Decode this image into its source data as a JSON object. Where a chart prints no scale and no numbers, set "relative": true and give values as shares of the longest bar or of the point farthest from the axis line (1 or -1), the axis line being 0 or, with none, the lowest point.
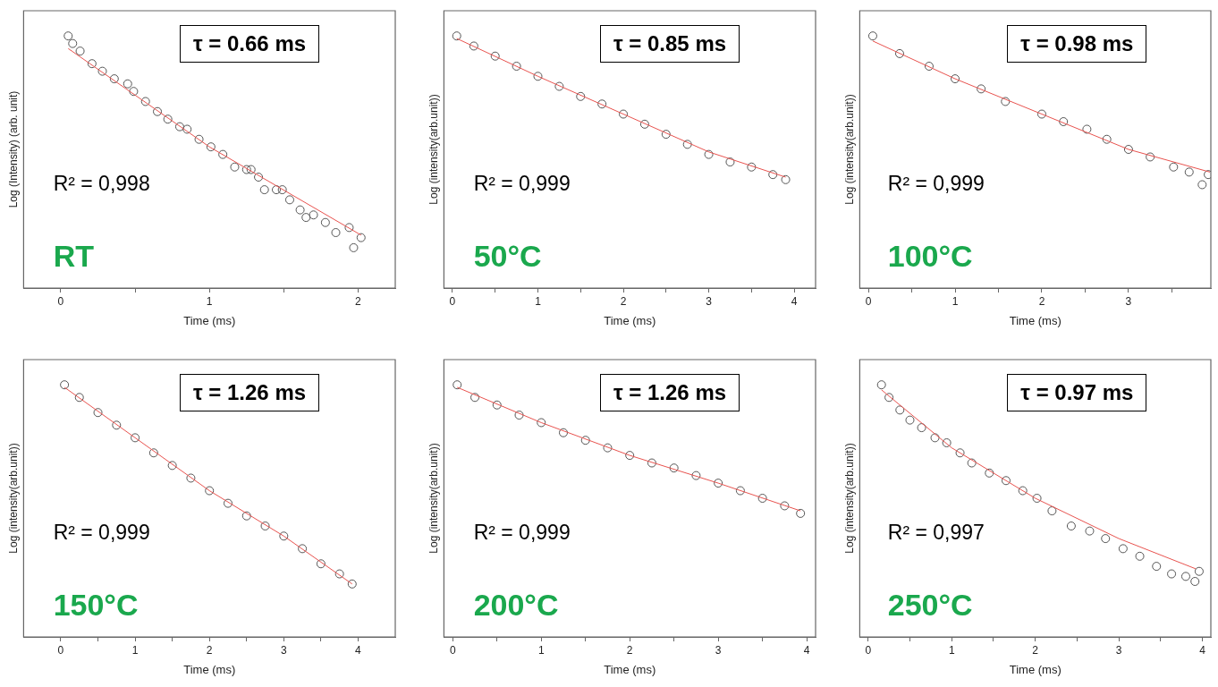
{
  "chart_data": [
    {
      "type": "scatter",
      "relative": true,
      "xlabel": "Time (ms)",
      "ylabel": "Log (Intensity) (arb. unit)",
      "xlim": [
        -0.25,
        2.25
      ],
      "xticks": [
        0,
        {
          "value": 0.5,
          "label": null
        },
        1,
        {
          "value": 1.5,
          "label": null
        },
        2
      ],
      "marker": "circle",
      "legend": false,
      "annotations": [
        "τ = 0.66 ms",
        "R² = 0,998",
        "RT"
      ],
      "series": [
        {
          "color": "#555555",
          "x": [
            0.05,
            0.08,
            0.13,
            0.21,
            0.28,
            0.36,
            0.45,
            0.49,
            0.57,
            0.65,
            0.72,
            0.8,
            0.85,
            0.93,
            1.01,
            1.09,
            1.17,
            1.25,
            1.28,
            1.33,
            1.37,
            1.45,
            1.49,
            1.54,
            1.61,
            1.65,
            1.7,
            1.78,
            1.85,
            1.94,
            1.97,
            2.02
          ],
          "values": [
            1.0,
            0.97,
            0.94,
            0.89,
            0.86,
            0.83,
            0.81,
            0.78,
            0.74,
            0.7,
            0.67,
            0.64,
            0.63,
            0.59,
            0.56,
            0.53,
            0.48,
            0.47,
            0.47,
            0.44,
            0.39,
            0.39,
            0.39,
            0.35,
            0.31,
            0.28,
            0.29,
            0.26,
            0.22,
            0.24,
            0.16,
            0.2
          ]
        },
        {
          "type": "line",
          "marker": "none",
          "color": "#e8534f",
          "x": [
            0.05,
            1.0,
            2.02
          ],
          "values": [
            0.95,
            0.56,
            0.21
          ]
        }
      ]
    },
    {
      "type": "scatter",
      "relative": true,
      "xlabel": "Time (ms)",
      "ylabel": "Log (intensity(arb.unit))",
      "xlim": [
        -0.1,
        4.25
      ],
      "xticks": [
        0,
        {
          "value": 0.5,
          "label": null
        },
        1,
        {
          "value": 1.5,
          "label": null
        },
        2,
        {
          "value": 2.5,
          "label": null
        },
        3,
        {
          "value": 3.5,
          "label": null
        },
        4
      ],
      "marker": "circle",
      "legend": false,
      "annotations": [
        "τ = 0.85 ms",
        "R² = 0,999",
        "50°C"
      ],
      "series": [
        {
          "color": "#555555",
          "x": [
            0.05,
            0.25,
            0.5,
            0.75,
            1.0,
            1.25,
            1.5,
            1.75,
            2.0,
            2.25,
            2.5,
            2.75,
            3.0,
            3.25,
            3.5,
            3.75,
            3.9
          ],
          "values": [
            1.0,
            0.96,
            0.92,
            0.88,
            0.84,
            0.8,
            0.76,
            0.73,
            0.69,
            0.65,
            0.61,
            0.57,
            0.53,
            0.5,
            0.48,
            0.45,
            0.43
          ]
        },
        {
          "type": "line",
          "marker": "none",
          "color": "#e8534f",
          "x": [
            0.05,
            1.0,
            2.0,
            3.0,
            3.9
          ],
          "values": [
            0.99,
            0.84,
            0.69,
            0.54,
            0.44
          ]
        }
      ]
    },
    {
      "type": "scatter",
      "relative": true,
      "xlabel": "Time (ms)",
      "ylabel": "Log (intensity(arb.unit))",
      "xlim": [
        -0.1,
        3.95
      ],
      "xticks": [
        0,
        {
          "value": 0.5,
          "label": null
        },
        1,
        {
          "value": 1.5,
          "label": null
        },
        2,
        {
          "value": 2.5,
          "label": null
        },
        3,
        {
          "value": 3.5,
          "label": null
        }
      ],
      "marker": "circle",
      "legend": false,
      "annotations": [
        "τ = 0.98 ms",
        "R² = 0,999",
        "100°C"
      ],
      "series": [
        {
          "color": "#555555",
          "x": [
            0.05,
            0.36,
            0.7,
            1.0,
            1.3,
            1.58,
            2.0,
            2.25,
            2.52,
            2.75,
            3.0,
            3.25,
            3.52,
            3.7,
            3.85,
            3.92
          ],
          "values": [
            1.0,
            0.93,
            0.88,
            0.83,
            0.79,
            0.74,
            0.69,
            0.66,
            0.63,
            0.59,
            0.55,
            0.52,
            0.48,
            0.46,
            0.41,
            0.45
          ]
        },
        {
          "type": "line",
          "marker": "none",
          "color": "#e8534f",
          "x": [
            0.05,
            1.0,
            2.0,
            3.0,
            3.94
          ],
          "values": [
            0.98,
            0.83,
            0.69,
            0.55,
            0.46
          ]
        }
      ]
    },
    {
      "type": "scatter",
      "relative": true,
      "xlabel": "Time (ms)",
      "ylabel": "Log (intensity(arb.unit))",
      "xlim": [
        -0.5,
        4.5
      ],
      "xticks": [
        0,
        {
          "value": 0.5,
          "label": null
        },
        1,
        {
          "value": 1.5,
          "label": null
        },
        2,
        {
          "value": 2.5,
          "label": null
        },
        3,
        {
          "value": 3.5,
          "label": null
        },
        4
      ],
      "marker": "circle",
      "legend": false,
      "annotations": [
        "τ = 1.26 ms",
        "R² = 0,999",
        "150°C"
      ],
      "series": [
        {
          "color": "#555555",
          "x": [
            0.05,
            0.25,
            0.5,
            0.75,
            1.0,
            1.25,
            1.5,
            1.75,
            2.0,
            2.25,
            2.5,
            2.75,
            3.0,
            3.25,
            3.5,
            3.75,
            3.92
          ],
          "values": [
            1.0,
            0.95,
            0.89,
            0.84,
            0.79,
            0.73,
            0.68,
            0.63,
            0.58,
            0.53,
            0.48,
            0.44,
            0.4,
            0.35,
            0.29,
            0.25,
            0.21
          ]
        },
        {
          "type": "line",
          "marker": "none",
          "color": "#e8534f",
          "x": [
            0.05,
            1.0,
            2.0,
            3.0,
            3.92
          ],
          "values": [
            0.99,
            0.79,
            0.58,
            0.4,
            0.21
          ]
        }
      ]
    },
    {
      "type": "scatter",
      "relative": true,
      "xlabel": "Time (ms)",
      "ylabel": "Log (intensity(arb.unit))",
      "xlim": [
        -0.1,
        4.1
      ],
      "xticks": [
        0,
        {
          "value": 0.5,
          "label": null
        },
        1,
        {
          "value": 1.5,
          "label": null
        },
        2,
        {
          "value": 2.5,
          "label": null
        },
        3,
        {
          "value": 3.5,
          "label": null
        },
        4
      ],
      "marker": "circle",
      "legend": false,
      "annotations": [
        "τ = 1.26 ms",
        "R² = 0,999",
        "200°C"
      ],
      "series": [
        {
          "color": "#555555",
          "x": [
            0.05,
            0.25,
            0.5,
            0.75,
            1.0,
            1.25,
            1.5,
            1.75,
            2.0,
            2.25,
            2.5,
            2.75,
            3.0,
            3.25,
            3.5,
            3.75,
            3.93
          ],
          "values": [
            1.0,
            0.95,
            0.92,
            0.88,
            0.85,
            0.81,
            0.78,
            0.75,
            0.72,
            0.69,
            0.67,
            0.64,
            0.61,
            0.58,
            0.55,
            0.52,
            0.49
          ]
        },
        {
          "type": "line",
          "marker": "none",
          "color": "#e8534f",
          "x": [
            0.05,
            1.0,
            2.0,
            3.0,
            3.93
          ],
          "values": [
            0.99,
            0.85,
            0.72,
            0.61,
            0.5
          ]
        }
      ]
    },
    {
      "type": "scatter",
      "relative": true,
      "xlabel": "Time (ms)",
      "ylabel": "Log (intensity(arb.unit))",
      "xlim": [
        -0.1,
        4.1
      ],
      "xticks": [
        0,
        {
          "value": 0.5,
          "label": null
        },
        1,
        {
          "value": 1.5,
          "label": null
        },
        2,
        {
          "value": 2.5,
          "label": null
        },
        3,
        {
          "value": 3.5,
          "label": null
        },
        4
      ],
      "marker": "circle",
      "legend": false,
      "annotations": [
        "τ = 0.97 ms",
        "R² = 0,997",
        "250°C"
      ],
      "series": [
        {
          "color": "#555555",
          "x": [
            0.16,
            0.25,
            0.38,
            0.5,
            0.64,
            0.8,
            0.94,
            1.1,
            1.24,
            1.45,
            1.65,
            1.85,
            2.02,
            2.2,
            2.43,
            2.65,
            2.84,
            3.05,
            3.25,
            3.45,
            3.63,
            3.8,
            3.91,
            3.96
          ],
          "values": [
            1.0,
            0.95,
            0.9,
            0.86,
            0.83,
            0.79,
            0.77,
            0.73,
            0.69,
            0.65,
            0.62,
            0.58,
            0.55,
            0.5,
            0.44,
            0.42,
            0.39,
            0.35,
            0.32,
            0.28,
            0.25,
            0.24,
            0.22,
            0.26
          ]
        },
        {
          "type": "line",
          "marker": "none",
          "color": "#e8534f",
          "x": [
            0.16,
            1.0,
            2.0,
            3.0,
            3.92
          ],
          "values": [
            0.98,
            0.75,
            0.55,
            0.39,
            0.27
          ]
        }
      ]
    }
  ]
}
